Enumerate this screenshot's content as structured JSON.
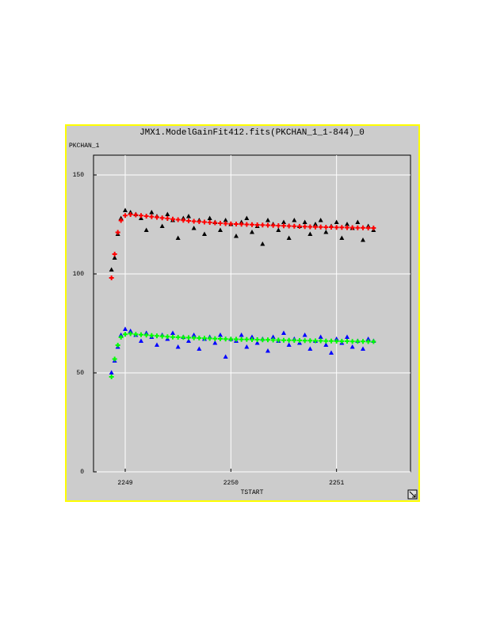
{
  "chart_data": {
    "type": "scatter",
    "title": "JMX1.ModelGainFit412.fits(PKCHAN_1_1-844)_0",
    "y_label": "PKCHAN_1",
    "x_label": "TSTART",
    "xlim": [
      2248.7,
      2251.7
    ],
    "xticks": [
      2249,
      2250,
      2251
    ],
    "ylim": [
      0,
      160
    ],
    "yticks": [
      0,
      50,
      100,
      150
    ],
    "grid": true,
    "x": [
      2248.87,
      2248.9,
      2248.93,
      2248.96,
      2249,
      2249.05,
      2249.1,
      2249.15,
      2249.2,
      2249.25,
      2249.3,
      2249.35,
      2249.4,
      2249.45,
      2249.5,
      2249.55,
      2249.6,
      2249.65,
      2249.7,
      2249.75,
      2249.8,
      2249.85,
      2249.9,
      2249.95,
      2250,
      2250.05,
      2250.1,
      2250.15,
      2250.2,
      2250.25,
      2250.3,
      2250.35,
      2250.4,
      2250.45,
      2250.5,
      2250.55,
      2250.6,
      2250.65,
      2250.7,
      2250.75,
      2250.8,
      2250.85,
      2250.9,
      2250.95,
      2251,
      2251.05,
      2251.1,
      2251.15,
      2251.2,
      2251.25,
      2251.3,
      2251.35
    ],
    "series": [
      {
        "color": "#000000",
        "marker": "triangle",
        "values": [
          102,
          108,
          120,
          128,
          132,
          131,
          130,
          128,
          122,
          131,
          129,
          124,
          130,
          127,
          118,
          128,
          129,
          123,
          127,
          120,
          128,
          126,
          122,
          127,
          125,
          119,
          126,
          128,
          121,
          124,
          115,
          127,
          125,
          122,
          126,
          118,
          127,
          124,
          126,
          120,
          125,
          127,
          121,
          124,
          126,
          118,
          125,
          123,
          126,
          117,
          124,
          122
        ]
      },
      {
        "color": "#ff0000",
        "marker": "plus",
        "values": [
          98,
          110,
          121,
          127,
          129.5,
          130,
          129.8,
          129.5,
          129.2,
          128.9,
          128.6,
          128.3,
          128,
          127.7,
          127.4,
          127.1,
          126.8,
          126.6,
          126.4,
          126.2,
          126,
          125.8,
          125.6,
          125.4,
          125.3,
          125.2,
          125.1,
          125,
          124.9,
          124.8,
          124.7,
          124.6,
          124.5,
          124.4,
          124.3,
          124.2,
          124.1,
          124,
          123.9,
          123.8,
          123.7,
          123.7,
          123.6,
          123.6,
          123.5,
          123.5,
          123.4,
          123.4,
          123.3,
          123.3,
          123.2,
          123.2
        ]
      },
      {
        "color": "#0000ff",
        "marker": "triangle",
        "values": [
          50,
          56,
          63,
          69,
          72,
          71,
          69,
          66,
          70,
          68,
          64,
          69,
          67,
          70,
          63,
          68,
          66,
          69,
          62,
          67,
          68,
          65,
          69,
          58,
          67,
          66,
          69,
          63,
          68,
          65,
          67,
          61,
          68,
          66,
          70,
          64,
          67,
          65,
          69,
          62,
          66,
          68,
          64,
          60,
          67,
          65,
          68,
          63,
          66,
          62,
          67,
          66
        ]
      },
      {
        "color": "#00ff00",
        "marker": "plus",
        "values": [
          48,
          57,
          64,
          68,
          69.5,
          69.8,
          69.5,
          69.3,
          69.1,
          68.9,
          68.7,
          68.5,
          68.3,
          68.1,
          68,
          67.9,
          67.8,
          67.7,
          67.6,
          67.5,
          67.4,
          67.3,
          67.2,
          67.1,
          67,
          67,
          66.9,
          66.9,
          66.8,
          66.8,
          66.7,
          66.7,
          66.6,
          66.6,
          66.5,
          66.5,
          66.4,
          66.4,
          66.3,
          66.3,
          66.2,
          66.2,
          66.1,
          66.1,
          66,
          66,
          66,
          65.9,
          65.9,
          65.9,
          65.8,
          65.8
        ]
      }
    ]
  }
}
